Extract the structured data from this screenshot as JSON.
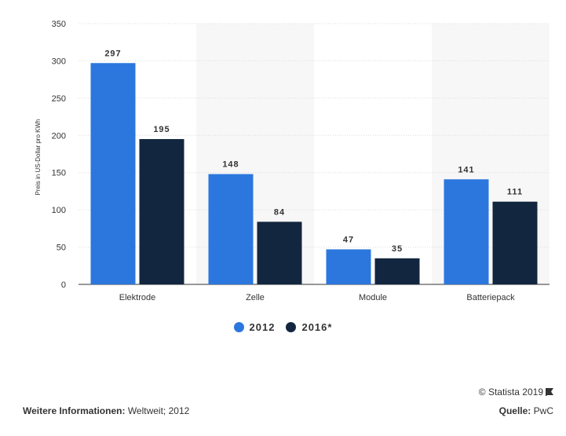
{
  "chart_data": {
    "type": "bar",
    "categories": [
      "Elektrode",
      "Zelle",
      "Module",
      "Batteriepack"
    ],
    "series": [
      {
        "name": "2012",
        "values": [
          297,
          148,
          47,
          141
        ],
        "color": "#2b77de"
      },
      {
        "name": "2016*",
        "values": [
          195,
          84,
          35,
          111
        ],
        "color": "#13263f"
      }
    ],
    "ylabel": "Preis in US-Dollar pro KWh",
    "ylim": [
      0,
      350
    ],
    "yticks": [
      0,
      50,
      100,
      150,
      200,
      250,
      300,
      350
    ],
    "grid": true,
    "legend_position": "bottom"
  },
  "credit": {
    "text": "© Statista 2019"
  },
  "footer": {
    "info_label": "Weitere Informationen:",
    "info_value": "Weltweit; 2012",
    "source_label": "Quelle:",
    "source_value": "PwC"
  }
}
